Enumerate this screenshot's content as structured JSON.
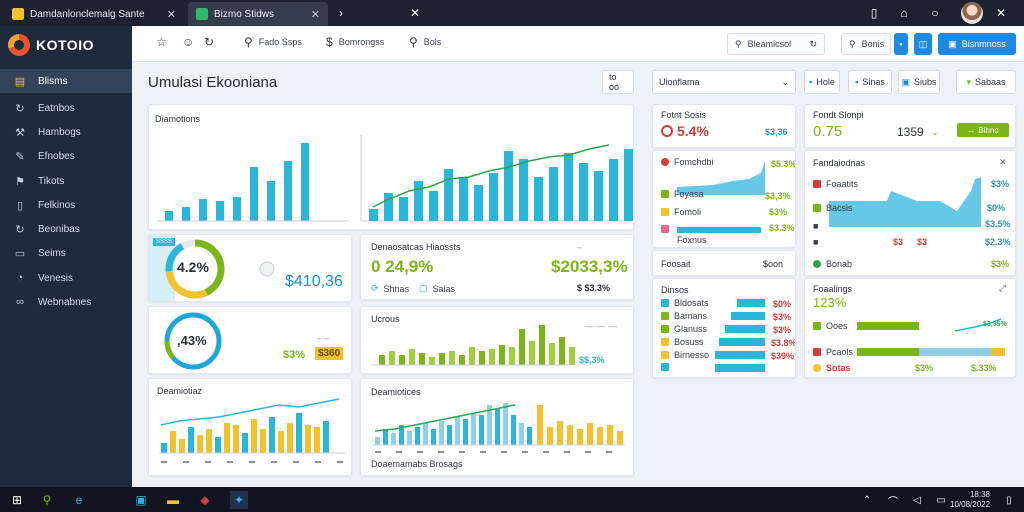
{
  "colors": {
    "accent": "#1e88e5",
    "green": "#7cb518",
    "teal": "#29b6d8",
    "gold": "#f2c12e",
    "red": "#d63b3b",
    "sidebar": "#1f2a3d"
  },
  "browser": {
    "tabs": [
      {
        "label": "Damdanlonclemalg Sante",
        "icon": "favicon-yellow"
      },
      {
        "label": "Bizmo Stidws",
        "icon": "favicon-green"
      }
    ],
    "new_tab_icon": "plus-icon"
  },
  "sidebar": {
    "brand": "KOTOIO",
    "items": [
      {
        "label": "Blisms",
        "icon": "home-icon"
      },
      {
        "label": "Eatnbos",
        "icon": "refresh-icon"
      },
      {
        "label": "Hambogs",
        "icon": "hammer-icon"
      },
      {
        "label": "Efnobes",
        "icon": "pen-icon"
      },
      {
        "label": "Tikots",
        "icon": "flag-icon"
      },
      {
        "label": "Felkinos",
        "icon": "document-icon"
      },
      {
        "label": "Beonibas",
        "icon": "refresh-icon"
      },
      {
        "label": "Seims",
        "icon": "folder-icon"
      },
      {
        "label": "Venesis",
        "icon": "chart-icon"
      },
      {
        "label": "Webnabnes",
        "icon": "link-icon"
      }
    ]
  },
  "toolbar": {
    "tools": [
      "Fado Ssps",
      "Bomrongss",
      "Bols"
    ],
    "search_label": "Bleamicsol",
    "find_label": "Bonis",
    "primary_button": "Bisnmnoss"
  },
  "main": {
    "title": "Umulasi Ekooniana",
    "range_label": "to oo",
    "dropdown_label": "Uionflama",
    "view_buttons": [
      "Hole",
      "Sinas",
      "Siubs"
    ],
    "filter_label": "Sabaas"
  },
  "cards": {
    "bars1": {
      "title": "Diamotions"
    },
    "ring1": {
      "badge": "SSSS",
      "percent": "4.2%",
      "value": "$410,36"
    },
    "ring2": {
      "percent": ",43%",
      "change": "$3%",
      "badge": "$360"
    },
    "bottom1": {
      "title": "Deamiotiaz"
    },
    "kpi_mid": {
      "title": "Denaosatcas Hiaossts",
      "percent": "0 24,9%",
      "value": "$2033,3%",
      "links": [
        "Shnas",
        "Saias"
      ],
      "footer": "$ $3.3%"
    },
    "bars_green": {
      "title": "Ucrous",
      "footer": "$$,3%"
    },
    "combo_mid": {
      "title": "Deamiotices",
      "footer": "Doaemamabs Brosags"
    },
    "kpi_a": {
      "title": "Fotnt Sosis",
      "value": "5.4%",
      "side": "$3,36"
    },
    "list_a": {
      "title": "Fomchdbi",
      "rows": [
        {
          "label": "Foyasa",
          "value": "$3,3%"
        },
        {
          "label": "Fomoli",
          "value": "$3%"
        },
        {
          "label": "Foxnus",
          "value": "$3.3%"
        }
      ],
      "extra": "$5.3%"
    },
    "kpi_a2": {
      "title": "Foosait",
      "value": "$oon"
    },
    "list_b": {
      "title": "Dinsos",
      "rows": [
        {
          "label": "Bldosats",
          "value": "$0%"
        },
        {
          "label": "Bamans",
          "value": "$3%"
        },
        {
          "label": "Glanuss",
          "value": "$3%"
        },
        {
          "label": "Bosuss",
          "value": "$3.8%"
        },
        {
          "label": "Birnesso",
          "value": "$39%"
        }
      ]
    },
    "kpi_b": {
      "title": "Fondt Slonpi",
      "value": "0.75",
      "value2": "1359",
      "button": "Bihno"
    },
    "list_c": {
      "title": "Fandaiodnas",
      "rows": [
        {
          "label": "Foaatits",
          "value": "$3%"
        },
        {
          "label": "Bacsis",
          "value": "$0%"
        }
      ],
      "chart_rows": [
        "$0%",
        "$3.5%",
        "$2.3%"
      ],
      "marks": [
        "$3",
        "$3"
      ],
      "footer_label": "Bonab",
      "footer_value": "$3%"
    },
    "list_d": {
      "title": "Foaalings",
      "percent": "123%",
      "rows": [
        {
          "label": "Ooes",
          "value": "$3,35%"
        },
        {
          "label": "Pcaols",
          "value": "$13%"
        }
      ],
      "footer": "$3%",
      "footer_labels": [
        "Sotas",
        "$.33%"
      ]
    }
  },
  "taskbar": {
    "time": "18:38",
    "date": "10/08/2022"
  }
}
